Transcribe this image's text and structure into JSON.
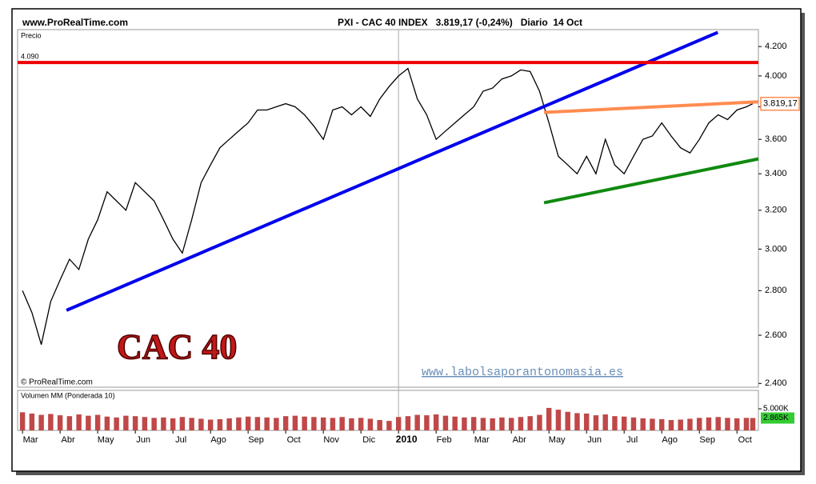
{
  "chart_data": {
    "type": "line",
    "site": "www.ProRealTime.com",
    "title": "PXI - CAC 40 INDEX   3.819,17 (-0,24%)   Diario  14 Oct",
    "y_label": "Precio",
    "copyright": "© ProRealTime.com",
    "big_label": "CAC 40",
    "watermark": "www.labolsaporantonomasia.es",
    "log_scale": true,
    "xlim": [
      -0.13,
      19.57
    ],
    "ylim": [
      2385,
      4320
    ],
    "xticks": [
      {
        "value": 0,
        "label": "Mar"
      },
      {
        "value": 1,
        "label": "Abr"
      },
      {
        "value": 2,
        "label": "May"
      },
      {
        "value": 3,
        "label": "Jun"
      },
      {
        "value": 4,
        "label": "Jul"
      },
      {
        "value": 5,
        "label": "Ago"
      },
      {
        "value": 6,
        "label": "Sep"
      },
      {
        "value": 7,
        "label": "Oct"
      },
      {
        "value": 8,
        "label": "Nov"
      },
      {
        "value": 9,
        "label": "Dic"
      },
      {
        "value": 10,
        "label": "2010"
      },
      {
        "value": 11,
        "label": "Feb"
      },
      {
        "value": 12,
        "label": "Mar"
      },
      {
        "value": 13,
        "label": "Abr"
      },
      {
        "value": 14,
        "label": "May"
      },
      {
        "value": 15,
        "label": "Jun"
      },
      {
        "value": 16,
        "label": "Jul"
      },
      {
        "value": 17,
        "label": "Ago"
      },
      {
        "value": 18,
        "label": "Sep"
      },
      {
        "value": 19,
        "label": "Oct"
      }
    ],
    "year_separator": 10,
    "yticks": [
      {
        "value": 2400,
        "label": "2.400"
      },
      {
        "value": 2600,
        "label": "2.600"
      },
      {
        "value": 2800,
        "label": "2.800"
      },
      {
        "value": 3000,
        "label": "3.000"
      },
      {
        "value": 3200,
        "label": "3.200"
      },
      {
        "value": 3400,
        "label": "3.400"
      },
      {
        "value": 3600,
        "label": "3.600"
      },
      {
        "value": 3800,
        "label": "3.800"
      },
      {
        "value": 4000,
        "label": "4.000"
      },
      {
        "value": 4200,
        "label": "4.200"
      }
    ],
    "x": [
      0,
      0.25,
      0.5,
      0.75,
      1,
      1.25,
      1.5,
      1.75,
      2,
      2.25,
      2.5,
      2.75,
      3,
      3.25,
      3.5,
      3.75,
      4,
      4.25,
      4.5,
      4.75,
      5,
      5.25,
      5.5,
      5.75,
      6,
      6.25,
      6.5,
      6.75,
      7,
      7.25,
      7.5,
      7.75,
      8,
      8.25,
      8.5,
      8.75,
      9,
      9.25,
      9.5,
      9.75,
      10,
      10.25,
      10.5,
      10.75,
      11,
      11.25,
      11.5,
      11.75,
      12,
      12.25,
      12.5,
      12.75,
      13,
      13.25,
      13.5,
      13.75,
      14,
      14.25,
      14.5,
      14.75,
      15,
      15.25,
      15.5,
      15.75,
      16,
      16.25,
      16.5,
      16.75,
      17,
      17.25,
      17.5,
      17.75,
      18,
      18.25,
      18.5,
      18.75,
      19,
      19.25,
      19.42
    ],
    "series": [
      {
        "name": "CAC 40",
        "color": "#000000",
        "values": [
          2800,
          2700,
          2560,
          2750,
          2850,
          2950,
          2900,
          3050,
          3150,
          3300,
          3250,
          3200,
          3350,
          3300,
          3250,
          3150,
          3050,
          2980,
          3150,
          3350,
          3450,
          3550,
          3600,
          3650,
          3700,
          3780,
          3780,
          3800,
          3820,
          3800,
          3750,
          3680,
          3600,
          3780,
          3800,
          3750,
          3800,
          3740,
          3850,
          3930,
          4000,
          4050,
          3850,
          3750,
          3600,
          3650,
          3700,
          3750,
          3800,
          3900,
          3920,
          3980,
          4000,
          4040,
          4030,
          3900,
          3700,
          3500,
          3450,
          3400,
          3500,
          3400,
          3600,
          3450,
          3400,
          3500,
          3600,
          3620,
          3700,
          3620,
          3550,
          3520,
          3600,
          3700,
          3750,
          3720,
          3780,
          3800,
          3819.17
        ]
      }
    ],
    "lines": [
      {
        "color": "#0000ee",
        "x": [
          1.17,
          18.49
        ],
        "y": [
          2710,
          4300
        ]
      },
      {
        "color": "#ee0000",
        "x": [
          -0.13,
          19.57
        ],
        "y": [
          4090,
          4090
        ],
        "label": "4.090"
      },
      {
        "color": "#ff8c50",
        "x": [
          13.87,
          19.57
        ],
        "y": [
          3765,
          3832
        ]
      },
      {
        "color": "#108a10",
        "x": [
          13.87,
          19.57
        ],
        "y": [
          3240,
          3485
        ]
      }
    ],
    "last_price": {
      "value": 3819.17,
      "label": "3.819,17",
      "color": "#ff8c50"
    },
    "volume": {
      "title": "Volumen MM (Ponderada 10)",
      "color": "#c04848",
      "ylim": [
        0,
        9260
      ],
      "yticks": [
        {
          "value": 5000,
          "label": "5.000K"
        }
      ],
      "values": [
        4200,
        3900,
        3600,
        3800,
        3500,
        3300,
        3700,
        3400,
        3600,
        3200,
        3000,
        3400,
        3300,
        3100,
        2900,
        3000,
        2800,
        3100,
        2900,
        2700,
        2500,
        2600,
        2800,
        3000,
        3200,
        3100,
        3000,
        2900,
        3300,
        3400,
        3200,
        3100,
        3000,
        2900,
        3100,
        2800,
        2900,
        2700,
        2400,
        2200,
        3100,
        3300,
        3600,
        3500,
        3700,
        3400,
        3200,
        3000,
        3100,
        2900,
        2800,
        3000,
        2900,
        3100,
        3300,
        3600,
        5200,
        4800,
        4300,
        4000,
        3900,
        3500,
        3700,
        3300,
        3200,
        3000,
        2800,
        2700,
        2600,
        2400,
        2500,
        2700,
        2900,
        3000,
        3100,
        2900,
        2800,
        2900,
        2865
      ],
      "last": {
        "value": 2865,
        "label": "2.865K",
        "color": "#33cc33"
      }
    }
  }
}
